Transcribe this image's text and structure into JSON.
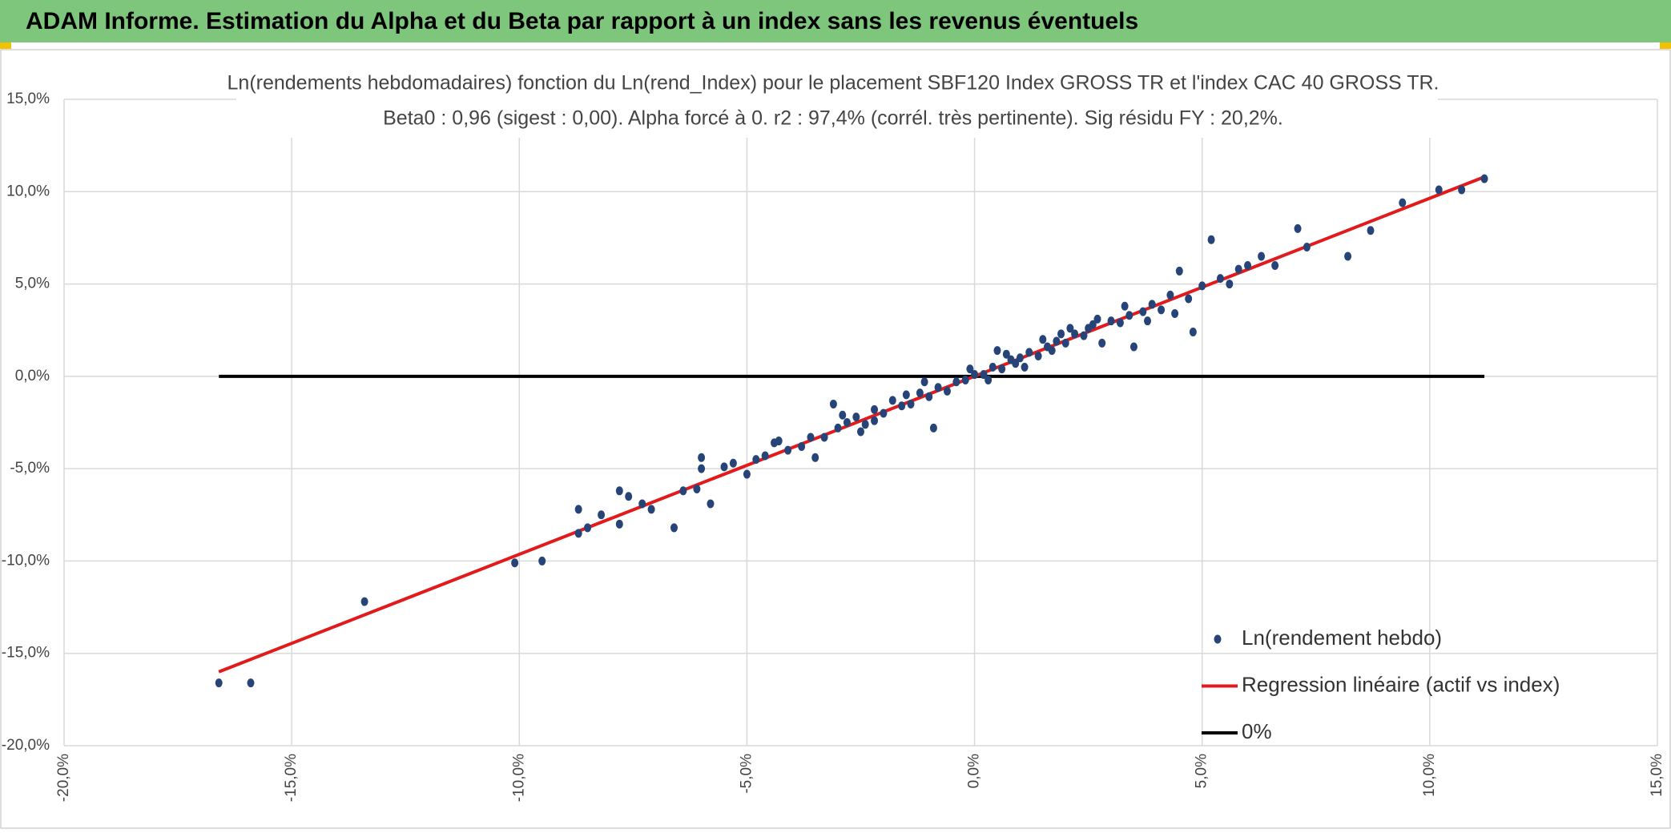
{
  "header": {
    "title": "ADAM Informe. Estimation du Alpha et du Beta par rapport à un index sans les revenus éventuels"
  },
  "chart_data": {
    "type": "scatter",
    "title": "Ln(rendements hebdomadaires) fonction du Ln(rend_Index) pour le placement SBF120 Index GROSS TR et l'index CAC 40 GROSS TR.",
    "subtitle": "Beta0 : 0,96 (sigest : 0,00). Alpha forcé à 0. r2 : 97,4% (corrél. très pertinente). Sig résidu FY : 20,2%.",
    "xlim": [
      -20,
      15
    ],
    "ylim": [
      -20,
      15
    ],
    "xticks": [
      {
        "value": -20,
        "label": "-20,0%"
      },
      {
        "value": -15,
        "label": "-15,0%"
      },
      {
        "value": -10,
        "label": "-10,0%"
      },
      {
        "value": -5,
        "label": "-5,0%"
      },
      {
        "value": 0,
        "label": "0,0%"
      },
      {
        "value": 5,
        "label": "5,0%"
      },
      {
        "value": 10,
        "label": "10,0%"
      },
      {
        "value": 15,
        "label": "15,0%"
      }
    ],
    "yticks": [
      {
        "value": -20,
        "label": "-20,0%"
      },
      {
        "value": -15,
        "label": "-15,0%"
      },
      {
        "value": -10,
        "label": "-10,0%"
      },
      {
        "value": -5,
        "label": "-5,0%"
      },
      {
        "value": 0,
        "label": "0,0%"
      },
      {
        "value": 5,
        "label": "5,0%"
      },
      {
        "value": 10,
        "label": "10,0%"
      },
      {
        "value": 15,
        "label": "15,0%"
      }
    ],
    "grid": true,
    "legend": "lower right",
    "series": [
      {
        "name": "Ln(rendement hebdo)",
        "type": "scatter",
        "color": "#264478",
        "x": [
          -16.6,
          -15.9,
          -13.4,
          -10.1,
          -9.5,
          -8.7,
          -8.7,
          -8.5,
          -8.2,
          -7.8,
          -7.6,
          -7.3,
          -7.1,
          -7.8,
          -6.6,
          -6.4,
          -6.1,
          -6.0,
          -6.0,
          -5.8,
          -5.5,
          -5.3,
          -5.0,
          -4.8,
          -4.6,
          -4.3,
          -4.1,
          -3.8,
          -3.5,
          -3.3,
          -3.1,
          -3.0,
          -2.8,
          -2.6,
          -2.4,
          -2.2,
          -2.0,
          -1.8,
          -1.6,
          -1.4,
          -1.2,
          -1.0,
          -0.9,
          -0.8,
          -0.6,
          -0.4,
          -0.2,
          0,
          0.2,
          0.4,
          0.5,
          0.6,
          0.8,
          1.0,
          1.2,
          1.4,
          1.6,
          1.8,
          2.0,
          2.2,
          2.4,
          2.6,
          2.8,
          3.0,
          3.2,
          3.4,
          3.5,
          3.7,
          3.9,
          4.1,
          4.3,
          4.5,
          4.7,
          4.8,
          5.0,
          5.2,
          5.4,
          5.6,
          5.8,
          6.0,
          6.3,
          6.6,
          7.1,
          7.3,
          8.2,
          8.7,
          9.4,
          10.2,
          10.7,
          11.2,
          -2.2,
          -1.5,
          0.9,
          1.7,
          2.5,
          -0.1,
          0.3,
          -3.6,
          -2.9,
          1.1,
          2.1,
          3.3,
          4.4,
          -4.4,
          -1.1,
          0.7,
          1.9,
          2.7,
          -2.5,
          1.5,
          3.8
        ],
        "values": [
          -16.6,
          -16.6,
          -12.2,
          -10.1,
          -10.0,
          -7.2,
          -8.5,
          -8.2,
          -7.5,
          -6.2,
          -6.5,
          -6.9,
          -7.2,
          -8.0,
          -8.2,
          -6.2,
          -6.1,
          -4.4,
          -5.0,
          -6.9,
          -4.9,
          -4.7,
          -5.3,
          -4.5,
          -4.3,
          -3.5,
          -4.0,
          -3.8,
          -4.4,
          -3.3,
          -1.5,
          -2.8,
          -2.5,
          -2.2,
          -2.6,
          -1.8,
          -2.0,
          -1.3,
          -1.6,
          -1.5,
          -0.9,
          -1.1,
          -2.8,
          -0.6,
          -0.8,
          -0.3,
          -0.2,
          0.1,
          0.1,
          0.5,
          1.4,
          0.4,
          0.9,
          1.0,
          1.3,
          1.1,
          1.6,
          1.9,
          1.8,
          2.3,
          2.2,
          2.8,
          1.8,
          3.0,
          2.9,
          3.3,
          1.6,
          3.5,
          3.9,
          3.6,
          4.4,
          5.7,
          4.2,
          2.4,
          4.9,
          7.4,
          5.3,
          5.0,
          5.8,
          6.0,
          6.5,
          6.0,
          8.0,
          7.0,
          6.5,
          7.9,
          9.4,
          10.1,
          10.1,
          10.7,
          -2.4,
          -1.0,
          0.7,
          1.4,
          2.6,
          0.4,
          -0.2,
          -3.3,
          -2.1,
          0.5,
          2.6,
          3.8,
          3.4,
          -3.6,
          -0.3,
          1.2,
          2.3,
          3.1,
          -3.0,
          2.0,
          3.0
        ]
      },
      {
        "name": "Regression linéaire (actif vs index)",
        "type": "line",
        "color": "#e31a1c",
        "x": [
          -16.6,
          11.2
        ],
        "values": [
          -16.0,
          10.8
        ]
      },
      {
        "name": "0%",
        "type": "line",
        "color": "#000000",
        "x": [
          -16.6,
          11.2
        ],
        "values": [
          0,
          0
        ]
      }
    ]
  }
}
